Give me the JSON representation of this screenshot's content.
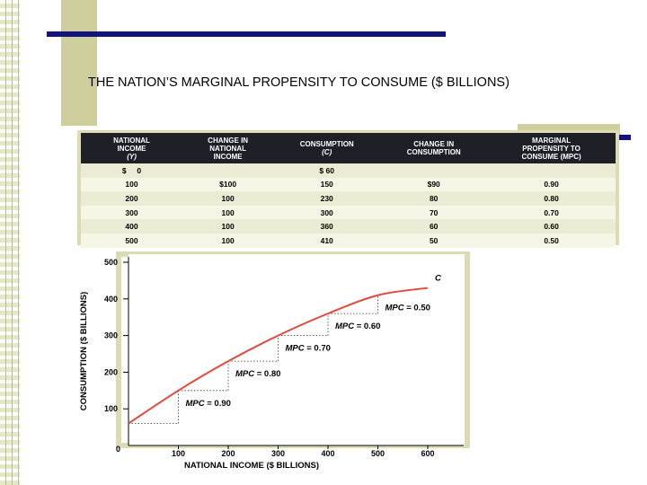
{
  "slide": {
    "title": "THE NATION’S MARGINAL PROPENSITY TO CONSUME ($ BILLIONS)"
  },
  "table": {
    "headers": [
      [
        "NATIONAL",
        "INCOME",
        "(Y)"
      ],
      [
        "CHANGE IN",
        "NATIONAL",
        "INCOME"
      ],
      [
        "CONSUMPTION",
        "(C)"
      ],
      [
        "CHANGE IN",
        "CONSUMPTION"
      ],
      [
        "MARGINAL",
        "PROPENSITY TO",
        "CONSUME (MPC)"
      ]
    ],
    "rows": [
      [
        "$     0",
        "",
        "$ 60",
        "",
        ""
      ],
      [
        "100",
        "$100",
        "150",
        "$90",
        "0.90"
      ],
      [
        "200",
        "100",
        "230",
        "80",
        "0.80"
      ],
      [
        "300",
        "100",
        "300",
        "70",
        "0.70"
      ],
      [
        "400",
        "100",
        "360",
        "60",
        "0.60"
      ],
      [
        "500",
        "100",
        "410",
        "50",
        "0.50"
      ]
    ]
  },
  "colors": {
    "curve": "#e0483a",
    "header_bg": "#1f1f28",
    "accent_rule": "#14147c",
    "panel": "#dddbb4"
  },
  "chart_data": {
    "type": "line",
    "title": "",
    "xlabel": "NATIONAL INCOME ($ BILLIONS)",
    "ylabel": "CONSUMPTION ($ BILLIONS)",
    "xlim": [
      0,
      650
    ],
    "ylim": [
      0,
      500
    ],
    "x_ticks": [
      "0",
      "100",
      "200",
      "300",
      "400",
      "500",
      "600"
    ],
    "y_ticks": [
      "0",
      "100",
      "200",
      "300",
      "400",
      "500"
    ],
    "series": [
      {
        "name": "C",
        "x": [
          0,
          100,
          200,
          300,
          400,
          500,
          600
        ],
        "y": [
          60,
          150,
          230,
          300,
          360,
          410,
          430
        ]
      }
    ],
    "annotations": [
      {
        "text": "MPC = 0.90",
        "x": 100,
        "y": 150
      },
      {
        "text": "MPC = 0.80",
        "x": 200,
        "y": 230
      },
      {
        "text": "MPC = 0.70",
        "x": 300,
        "y": 300
      },
      {
        "text": "MPC = 0.60",
        "x": 400,
        "y": 360
      },
      {
        "text": "MPC = 0.50",
        "x": 500,
        "y": 410
      }
    ],
    "grid": false
  }
}
